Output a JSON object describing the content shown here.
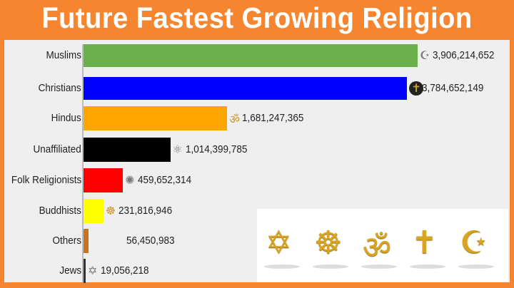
{
  "title": "Future Fastest Growing Religion",
  "chart_data": {
    "type": "bar",
    "orientation": "horizontal",
    "title": "Future Fastest Growing Religion",
    "categories": [
      "Muslims",
      "Christians",
      "Hindus",
      "Unaffiliated",
      "Folk Religionists",
      "Buddhists",
      "Others",
      "Jews"
    ],
    "values": [
      3906214652,
      3784652149,
      1681247365,
      1014399785,
      459652314,
      231816946,
      56450983,
      19056218
    ],
    "value_labels": [
      "3,906,214,652",
      "3,784,652,149",
      "1,681,247,365",
      "1,014,399,785",
      "459,652,314",
      "231,816,946",
      "56,450,983",
      "19,056,218"
    ],
    "colors": [
      "#6ab04c",
      "#0000ff",
      "#ffa500",
      "#000000",
      "#ff0000",
      "#ffff00",
      "#c8731f",
      "#333333"
    ],
    "icons": [
      "crescent-icon",
      "cross-icon",
      "om-icon",
      "atom-icon",
      "wheel-icon",
      "dharma-wheel-icon",
      "",
      "star-of-david-icon"
    ],
    "icon_glyphs": [
      "☪",
      "✝",
      "ॐ",
      "⚛",
      "✺",
      "☸",
      "",
      "✡"
    ],
    "grid": false,
    "legend": "none"
  },
  "symbols_panel": {
    "icons": [
      "star-of-david-icon",
      "dharma-wheel-icon",
      "om-icon",
      "cross-icon",
      "crescent-icon"
    ],
    "glyphs": [
      "✡",
      "☸",
      "ॐ",
      "✝",
      "☪"
    ]
  }
}
